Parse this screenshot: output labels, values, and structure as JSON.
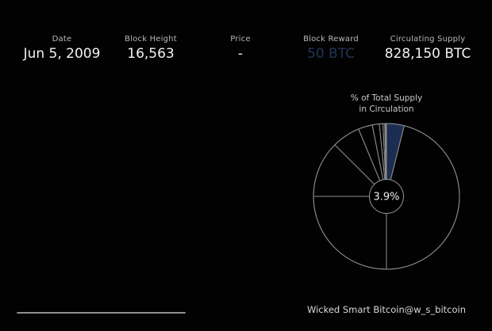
{
  "header": {
    "columns": [
      {
        "id": "date",
        "label": "Date",
        "value": "Jun 5, 2009"
      },
      {
        "id": "block-height",
        "label": "Block Height",
        "value": "16,563"
      },
      {
        "id": "price",
        "label": "Price",
        "value": "-"
      },
      {
        "id": "block-reward",
        "label": "Block Reward",
        "value": "50 BTC"
      },
      {
        "id": "circulating-supply",
        "label": "Circulating Supply",
        "value": "828,150 BTC"
      }
    ]
  },
  "pie": {
    "title_line1": "% of Total Supply",
    "title_line2": "in Circulation",
    "center_label": "3.9%"
  },
  "chart_data": {
    "type": "pie",
    "title": "% of Total Supply in Circulation",
    "donut": true,
    "center_label": "3.9%",
    "start_angle_deg": 90,
    "direction": "clockwise",
    "outer_radius": 92,
    "inner_radius": 21.5,
    "slices": [
      {
        "name": "circulating-supply-mined",
        "value_pct": 3.9,
        "color": "#1c2d52"
      },
      {
        "name": "epoch-1-remaining",
        "value_pct": 46.1,
        "color": "none"
      },
      {
        "name": "epoch-2",
        "value_pct": 25,
        "color": "none"
      },
      {
        "name": "epoch-3",
        "value_pct": 12.5,
        "color": "none"
      },
      {
        "name": "epoch-4",
        "value_pct": 6.25,
        "color": "none"
      },
      {
        "name": "epoch-5",
        "value_pct": 3.125,
        "color": "none"
      },
      {
        "name": "epoch-6",
        "value_pct": 1.5625,
        "color": "none"
      },
      {
        "name": "epoch-7",
        "value_pct": 0.78125,
        "color": "none"
      },
      {
        "name": "epoch-8",
        "value_pct": 0.390625,
        "color": "none"
      },
      {
        "name": "epoch-9",
        "value_pct": 0.1953125,
        "color": "none"
      },
      {
        "name": "epoch-remainder",
        "value_pct": 0.1953125,
        "color": "none"
      }
    ],
    "legend": "none",
    "grid": false
  },
  "footer": {
    "attribution": "Wicked Smart Bitcoin@w_s_bitcoin"
  },
  "colors": {
    "background": "#020202",
    "label_gray": "#b9b9b9",
    "value_white": "#f2f2f2",
    "block_reward_value": "#233457",
    "pie_stroke": "#8f8f8f",
    "mined_wedge_blue": "#1c2d52",
    "attribution_gray": "#dadada"
  }
}
